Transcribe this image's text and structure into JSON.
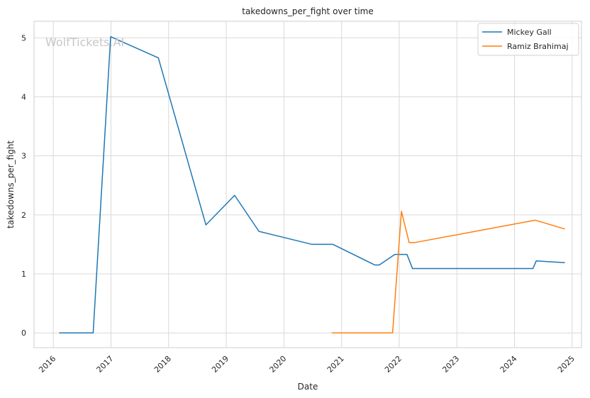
{
  "chart_data": {
    "type": "line",
    "title": "takedowns_per_fight over time",
    "xlabel": "Date",
    "ylabel": "takedowns_per_fight",
    "watermark": "WolfTickets.AI",
    "grid": true,
    "legend_position": "top-right",
    "xlim": [
      "2015-09-01",
      "2025-03-01"
    ],
    "ylim": [
      -0.25,
      5.28
    ],
    "x_ticks": [
      "2016",
      "2017",
      "2018",
      "2019",
      "2020",
      "2021",
      "2022",
      "2023",
      "2024",
      "2025"
    ],
    "y_ticks": [
      0,
      1,
      2,
      3,
      4,
      5
    ],
    "series": [
      {
        "name": "Mickey Gall",
        "color": "#1f77b4",
        "points": [
          [
            "2016-02-07",
            0.0
          ],
          [
            "2016-09-10",
            0.0
          ],
          [
            "2016-12-30",
            5.02
          ],
          [
            "2017-10-28",
            4.66
          ],
          [
            "2018-08-25",
            1.83
          ],
          [
            "2019-02-23",
            2.33
          ],
          [
            "2019-07-27",
            1.72
          ],
          [
            "2020-06-27",
            1.5
          ],
          [
            "2020-11-07",
            1.5
          ],
          [
            "2021-07-31",
            1.15
          ],
          [
            "2021-08-28",
            1.15
          ],
          [
            "2021-12-04",
            1.33
          ],
          [
            "2022-02-19",
            1.33
          ],
          [
            "2022-03-26",
            1.09
          ],
          [
            "2024-04-27",
            1.09
          ],
          [
            "2024-05-18",
            1.22
          ],
          [
            "2024-11-16",
            1.19
          ]
        ]
      },
      {
        "name": "Ramiz Brahimaj",
        "color": "#ff7f0e",
        "points": [
          [
            "2020-10-31",
            0.0
          ],
          [
            "2021-11-20",
            0.0
          ],
          [
            "2022-01-15",
            2.06
          ],
          [
            "2022-03-05",
            1.53
          ],
          [
            "2022-04-09",
            1.53
          ],
          [
            "2024-05-11",
            1.91
          ],
          [
            "2024-11-16",
            1.76
          ]
        ]
      }
    ]
  }
}
